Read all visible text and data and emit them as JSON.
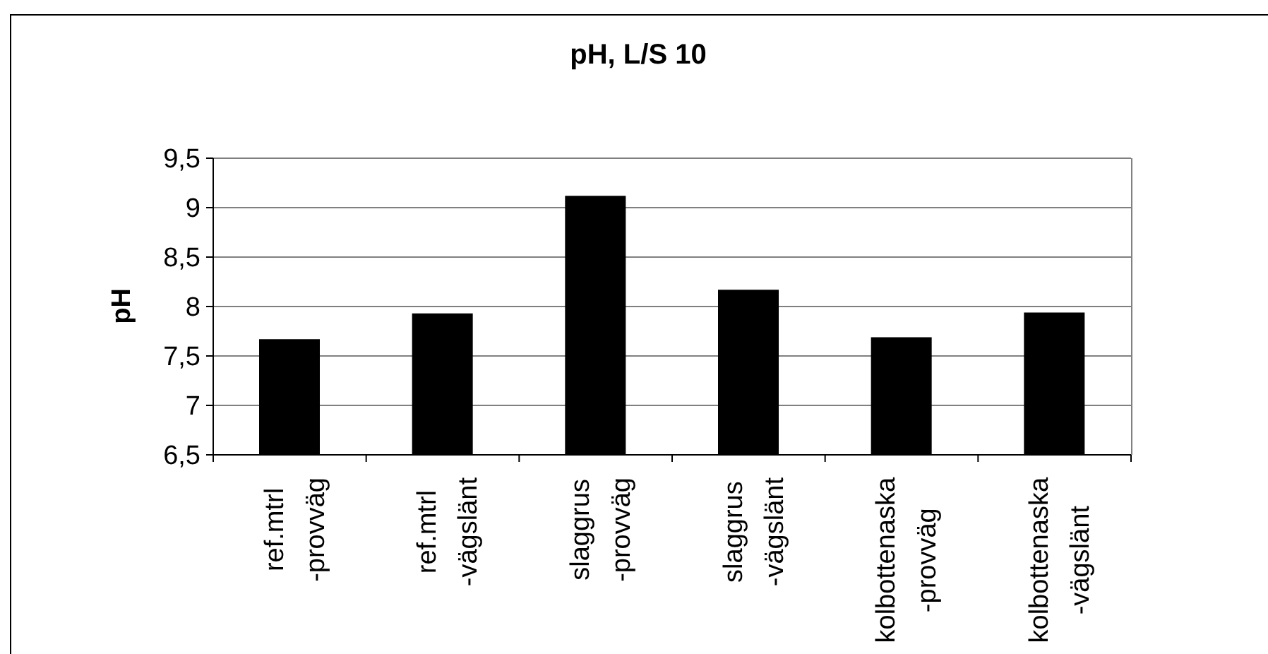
{
  "chart_data": {
    "type": "bar",
    "title": "pH, L/S 10",
    "ylabel": "pH",
    "categories": [
      "ref.mtrl -provväg",
      "ref.mtrl -vägslänt",
      "slaggrus -provväg",
      "slaggrus -vägslänt",
      "kolbottenaska -provväg",
      "kolbottenaska -vägslänt"
    ],
    "values": [
      7.67,
      7.93,
      9.12,
      8.17,
      7.69,
      7.94
    ],
    "color": "#000000",
    "ylim": [
      6.5,
      9.5
    ],
    "yticks": [
      {
        "value": 6.5,
        "label": "6,5"
      },
      7,
      {
        "value": 7.5,
        "label": "7,5"
      },
      8,
      {
        "value": 8.5,
        "label": "8,5"
      },
      9,
      {
        "value": 9.5,
        "label": "9,5"
      }
    ],
    "grid": "y"
  }
}
